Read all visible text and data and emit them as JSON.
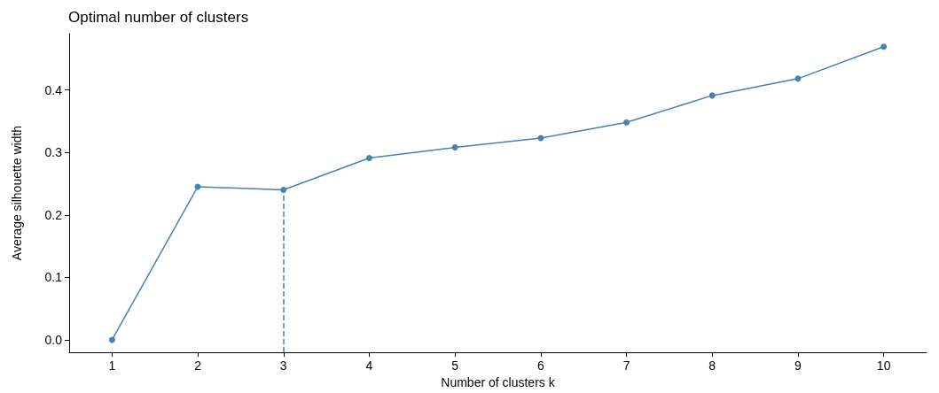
{
  "chart_data": {
    "type": "line",
    "title": "Optimal number of clusters",
    "xlabel": "Number of clusters k",
    "ylabel": "Average silhouette width",
    "categories": [
      "1",
      "2",
      "3",
      "4",
      "5",
      "6",
      "7",
      "8",
      "9",
      "10"
    ],
    "series": [
      {
        "color": "#4682b4",
        "values": [
          0,
          0.245,
          0.24,
          0.291,
          0.308,
          0.323,
          0.348,
          0.391,
          0.418,
          0.469
        ]
      }
    ],
    "ylim": [
      -0.02,
      0.49
    ],
    "yticks": [
      {
        "value": 0,
        "label": "0.0"
      },
      0.1,
      0.2,
      0.3,
      0.4
    ],
    "ref_lines": [
      {
        "axis": "x",
        "value": "3",
        "color": "#4682b4",
        "line_style": "dashed"
      }
    ],
    "grid": false,
    "marker": "circle",
    "line_style": "solid"
  }
}
